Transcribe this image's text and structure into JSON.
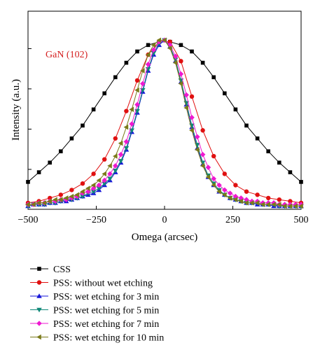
{
  "chart_data": {
    "type": "line",
    "title": "",
    "xlabel": "Omega (arcsec)",
    "ylabel": "Intensity (a.u.)",
    "xlim": [
      -500,
      500
    ],
    "ylim": [
      0,
      1.23
    ],
    "x_ticks": [
      -500,
      -250,
      0,
      250,
      500
    ],
    "x_tick_labels": [
      "−500",
      "−250",
      "0",
      "250",
      "500"
    ],
    "y_tick_labels_shown": false,
    "grid": false,
    "legend_position": "below",
    "annotation": {
      "text": "GaN (102)",
      "color": "#d42020"
    },
    "series": [
      {
        "name": "CSS",
        "color": "#000000",
        "marker": "square",
        "x": [
          -500,
          -460,
          -420,
          -380,
          -340,
          -300,
          -260,
          -220,
          -180,
          -140,
          -100,
          -60,
          -20,
          20,
          60,
          100,
          140,
          180,
          220,
          260,
          300,
          340,
          380,
          420,
          460,
          500
        ],
        "y": [
          0.17,
          0.23,
          0.29,
          0.36,
          0.44,
          0.52,
          0.62,
          0.72,
          0.82,
          0.91,
          0.98,
          1.02,
          1.04,
          1.04,
          1.02,
          0.98,
          0.91,
          0.82,
          0.72,
          0.62,
          0.52,
          0.44,
          0.36,
          0.29,
          0.23,
          0.17
        ]
      },
      {
        "name": "PSS: without wet etching",
        "color": "#e01010",
        "marker": "circle",
        "x": [
          -500,
          -460,
          -420,
          -380,
          -340,
          -300,
          -260,
          -220,
          -180,
          -140,
          -100,
          -60,
          -20,
          20,
          60,
          100,
          140,
          180,
          220,
          260,
          300,
          340,
          380,
          420,
          460,
          500
        ],
        "y": [
          0.04,
          0.05,
          0.07,
          0.09,
          0.12,
          0.16,
          0.22,
          0.31,
          0.44,
          0.61,
          0.8,
          0.96,
          1.04,
          1.04,
          0.92,
          0.7,
          0.49,
          0.33,
          0.22,
          0.15,
          0.11,
          0.09,
          0.07,
          0.06,
          0.05,
          0.04
        ]
      },
      {
        "name": "PSS: wet etching for 3 min",
        "color": "#1515d8",
        "marker": "triangle-up",
        "x": [
          -500,
          -480,
          -460,
          -440,
          -420,
          -400,
          -380,
          -360,
          -340,
          -320,
          -300,
          -280,
          -260,
          -240,
          -220,
          -200,
          -180,
          -160,
          -140,
          -120,
          -100,
          -80,
          -60,
          -40,
          -20,
          0,
          20,
          40,
          60,
          80,
          100,
          120,
          140,
          160,
          180,
          200,
          220,
          240,
          260,
          280,
          300,
          320,
          340,
          360,
          380,
          400,
          420,
          440,
          460,
          480,
          500
        ],
        "y": [
          0.02,
          0.03,
          0.03,
          0.03,
          0.04,
          0.04,
          0.05,
          0.05,
          0.06,
          0.07,
          0.08,
          0.09,
          0.1,
          0.12,
          0.15,
          0.18,
          0.23,
          0.29,
          0.37,
          0.48,
          0.6,
          0.73,
          0.86,
          0.96,
          1.02,
          1.05,
          1.01,
          0.92,
          0.79,
          0.65,
          0.51,
          0.38,
          0.28,
          0.2,
          0.15,
          0.11,
          0.09,
          0.07,
          0.06,
          0.05,
          0.04,
          0.04,
          0.03,
          0.03,
          0.03,
          0.02,
          0.02,
          0.02,
          0.02,
          0.02,
          0.02
        ]
      },
      {
        "name": "PSS: wet etching for 5 min",
        "color": "#108878",
        "marker": "triangle-down",
        "x": [
          -500,
          -480,
          -460,
          -440,
          -420,
          -400,
          -380,
          -360,
          -340,
          -320,
          -300,
          -280,
          -260,
          -240,
          -220,
          -200,
          -180,
          -160,
          -140,
          -120,
          -100,
          -80,
          -60,
          -40,
          -20,
          0,
          20,
          40,
          60,
          80,
          100,
          120,
          140,
          160,
          180,
          200,
          220,
          240,
          260,
          280,
          300,
          320,
          340,
          360,
          380,
          400,
          420,
          440,
          460,
          480,
          500
        ],
        "y": [
          0.02,
          0.03,
          0.03,
          0.03,
          0.04,
          0.04,
          0.05,
          0.06,
          0.06,
          0.07,
          0.08,
          0.1,
          0.11,
          0.13,
          0.16,
          0.19,
          0.24,
          0.3,
          0.38,
          0.49,
          0.61,
          0.74,
          0.87,
          0.97,
          1.03,
          1.05,
          1.01,
          0.93,
          0.8,
          0.66,
          0.52,
          0.4,
          0.29,
          0.21,
          0.16,
          0.12,
          0.09,
          0.07,
          0.06,
          0.05,
          0.04,
          0.04,
          0.04,
          0.03,
          0.03,
          0.03,
          0.02,
          0.02,
          0.02,
          0.02,
          0.02
        ]
      },
      {
        "name": "PSS: wet etching for 7 min",
        "color": "#ee18d0",
        "marker": "diamond",
        "x": [
          -500,
          -480,
          -460,
          -440,
          -420,
          -400,
          -380,
          -360,
          -340,
          -320,
          -300,
          -280,
          -260,
          -240,
          -220,
          -200,
          -180,
          -160,
          -140,
          -120,
          -100,
          -80,
          -60,
          -40,
          -20,
          0,
          20,
          40,
          60,
          80,
          100,
          120,
          140,
          160,
          180,
          200,
          220,
          240,
          260,
          280,
          300,
          320,
          340,
          360,
          380,
          400,
          420,
          440,
          460,
          480,
          500
        ],
        "y": [
          0.03,
          0.03,
          0.04,
          0.04,
          0.05,
          0.05,
          0.06,
          0.06,
          0.07,
          0.08,
          0.1,
          0.11,
          0.13,
          0.15,
          0.18,
          0.22,
          0.27,
          0.34,
          0.42,
          0.53,
          0.65,
          0.78,
          0.9,
          0.99,
          1.04,
          1.05,
          1.02,
          0.95,
          0.84,
          0.71,
          0.57,
          0.45,
          0.34,
          0.26,
          0.19,
          0.15,
          0.12,
          0.1,
          0.08,
          0.07,
          0.06,
          0.05,
          0.05,
          0.04,
          0.04,
          0.04,
          0.03,
          0.03,
          0.03,
          0.03,
          0.03
        ]
      },
      {
        "name": "PSS: wet etching for 10 min",
        "color": "#7a7a1a",
        "marker": "triangle-left",
        "x": [
          -500,
          -480,
          -460,
          -440,
          -420,
          -400,
          -380,
          -360,
          -340,
          -320,
          -300,
          -280,
          -260,
          -240,
          -220,
          -200,
          -180,
          -160,
          -140,
          -120,
          -100,
          -80,
          -60,
          -40,
          -20,
          0,
          20,
          40,
          60,
          80,
          100,
          120,
          140,
          160,
          180,
          200,
          220,
          240,
          260,
          280,
          300,
          320,
          340,
          360,
          380,
          400,
          420,
          440,
          460,
          480,
          500
        ],
        "y": [
          0.03,
          0.03,
          0.04,
          0.04,
          0.05,
          0.06,
          0.06,
          0.07,
          0.08,
          0.09,
          0.11,
          0.13,
          0.15,
          0.18,
          0.22,
          0.27,
          0.33,
          0.41,
          0.51,
          0.62,
          0.74,
          0.86,
          0.96,
          1.02,
          1.05,
          1.05,
          1.0,
          0.91,
          0.78,
          0.63,
          0.49,
          0.37,
          0.27,
          0.2,
          0.15,
          0.11,
          0.09,
          0.07,
          0.06,
          0.05,
          0.04,
          0.04,
          0.04,
          0.03,
          0.03,
          0.03,
          0.03,
          0.02,
          0.02,
          0.02,
          0.02
        ]
      }
    ]
  }
}
